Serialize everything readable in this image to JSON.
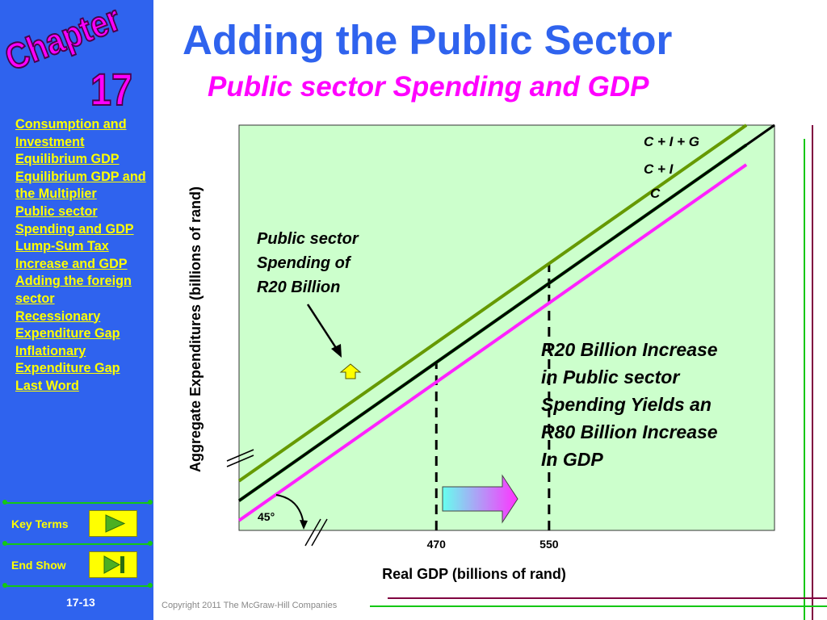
{
  "sidebar": {
    "chapter_label": "Chapter",
    "chapter_number": "17",
    "toc": [
      "Consumption and Investment",
      "Equilibrium GDP",
      "Equilibrium GDP and the Multiplier",
      "Public sector Spending and GDP",
      "Lump-Sum Tax Increase and GDP",
      "Adding the foreign sector",
      "Recessionary Expenditure Gap",
      "Inflationary Expenditure Gap",
      "Last Word"
    ],
    "key_terms_label": "Key Terms",
    "end_show_label": "End Show",
    "page_number": "17-13"
  },
  "header": {
    "title": "Adding the Public Sector",
    "subtitle": "Public sector Spending and GDP"
  },
  "footer": {
    "copyright": "Copyright 2011 The McGraw-Hill Companies"
  },
  "colors": {
    "sidebar_blue": "#2f63ee",
    "plot_bg": "#ccffcc",
    "c_line": "#ff22ff",
    "ci_line": "#006600",
    "cig_line": "#669900",
    "accent_magenta": "#ff00ff",
    "link_yellow": "#ffff00"
  },
  "icons": {
    "key_terms_button": "play-triangle-icon",
    "end_show_button": "skip-end-icon",
    "callout_arrow": "up-arrow-icon",
    "increase_arrow": "right-arrow-icon"
  },
  "chart_data": {
    "type": "line",
    "title": "Public sector Spending and GDP",
    "xlabel": "Real GDP (billions of rand)",
    "ylabel": "Aggregate Expenditures (billions of rand)",
    "x_ticks": [
      "470",
      "550"
    ],
    "axis_breaks": true,
    "grid": false,
    "series": [
      {
        "name": "C + I + G",
        "x": [
          330,
          690
        ],
        "y": [
          350,
          710
        ]
      },
      {
        "name": "C + I",
        "x": [
          330,
          690
        ],
        "y": [
          330,
          690
        ]
      },
      {
        "name": "C",
        "x": [
          330,
          690
        ],
        "y": [
          310,
          670
        ]
      },
      {
        "name": "",
        "x": [
          330,
          710
        ],
        "y": [
          330,
          710
        ]
      }
    ],
    "reference_lines": [
      {
        "x": 470
      },
      {
        "x": 550
      }
    ],
    "angle_label": "45°",
    "annotations": [
      "Public sector Spending of R20 Billion",
      "R20 Billion Increase in Public sector Spending Yields an R80 Billion Increase In GDP"
    ],
    "xlim": [
      330,
      710
    ],
    "ylim": [
      300,
      710
    ]
  }
}
